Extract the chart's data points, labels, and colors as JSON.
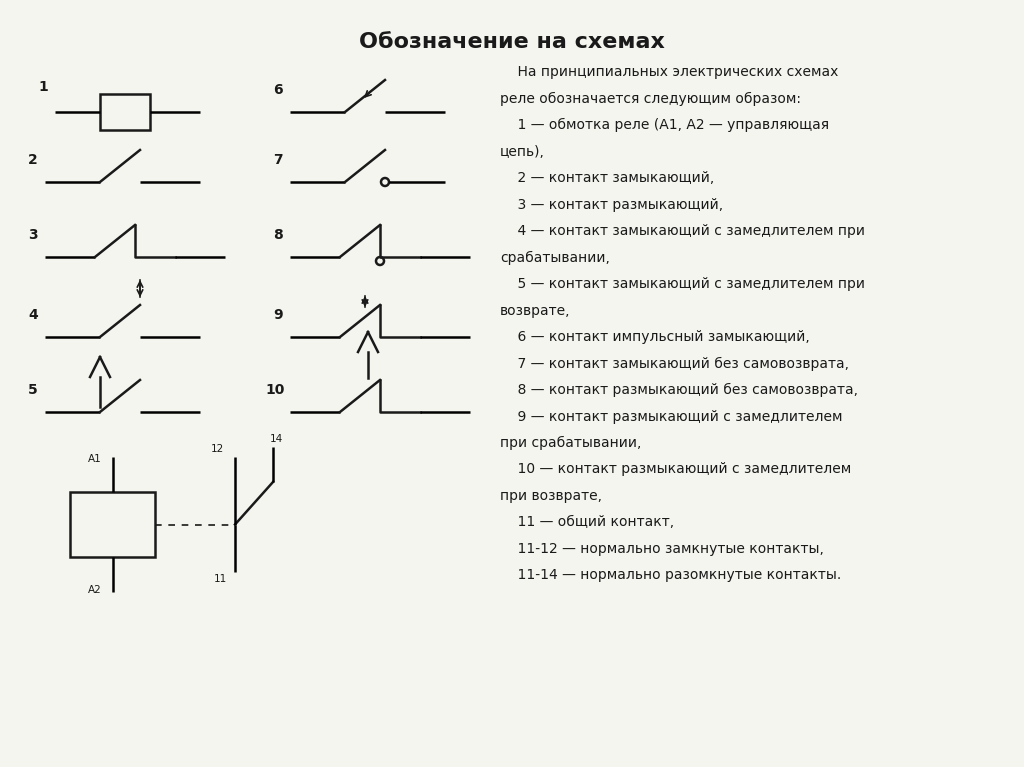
{
  "title": "Обозначение на схемах",
  "title_fontsize": 16,
  "title_bold": true,
  "bg_color": "#f5f5f0",
  "text_color": "#1a1a1a",
  "description_text": [
    "    На принципиальных электрических схемах",
    "реле обозначается следующим образом:",
    "    1 — обмотка реле (А1, А2 — управляющая",
    "цепь),",
    "    2 — контакт замыкающий,",
    "    3 — контакт размыкающий,",
    "    4 — контакт замыкающий с замедлителем при",
    "срабатывании,",
    "    5 — контакт замыкающий с замедлителем при",
    "возврате,",
    "    6 — контакт импульсный замыкающий,",
    "    7 — контакт замыкающий без самовозврата,",
    "    8 — контакт размыкающий без самовозврата,",
    "    9 — контакт размыкающий с замедлителем",
    "при срабатывании,",
    "    10 — контакт размыкающий с замедлителем",
    "при возврате,",
    "    11 — общий контакт,",
    "    11-12 — нормально замкнутые контакты,",
    "    11-14 — нормально разомкнутые контакты."
  ],
  "link_lines": [
    17,
    18
  ],
  "link_color": "#1a6abf"
}
